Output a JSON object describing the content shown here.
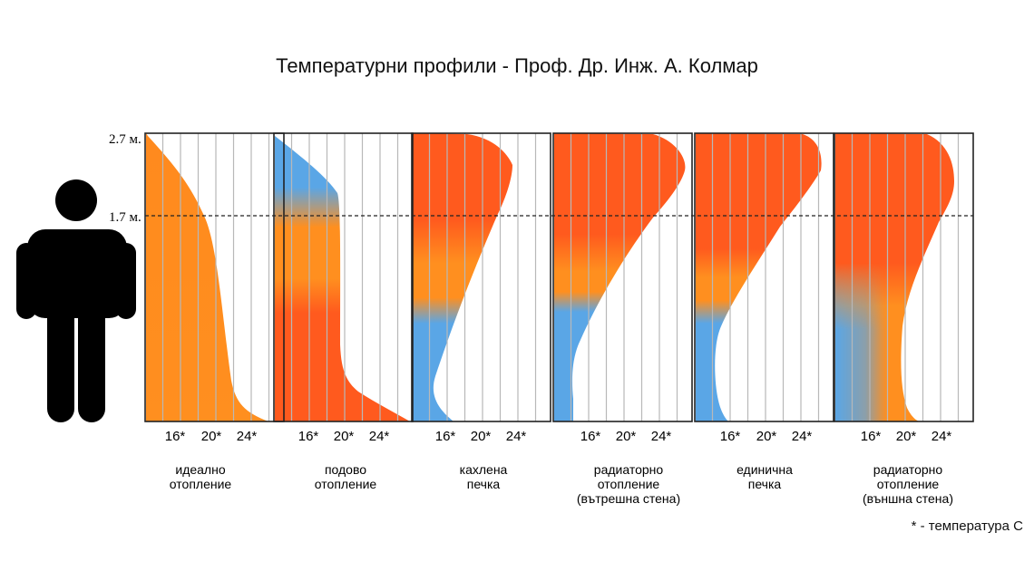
{
  "title": "Температурни профили - Проф. Др. Инж. А. Колмар",
  "height_labels": {
    "top": "2.7 м.",
    "mid": "1.7 м."
  },
  "footnote": "* - температура С",
  "colors": {
    "blue": "#5aa6e6",
    "orange": "#ff8f1f",
    "red_orange": "#ff5a1e",
    "grid": "#b8b8b8",
    "frame": "#222222",
    "person": "#000000"
  },
  "person_icon": "standing-person-silhouette-icon",
  "panels": [
    {
      "tick_labels": [
        "16*",
        "20*",
        "24*"
      ],
      "label_lines": [
        "идеално",
        "отопление"
      ]
    },
    {
      "tick_labels": [
        "16*",
        "20*",
        "24*"
      ],
      "label_lines": [
        "подово",
        "отопление"
      ]
    },
    {
      "tick_labels": [
        "16*",
        "20*",
        "24*"
      ],
      "label_lines": [
        "кахлена",
        "печка"
      ]
    },
    {
      "tick_labels": [
        "16*",
        "20*",
        "24*"
      ],
      "label_lines": [
        "радиаторно",
        "отопление",
        "(вътрешна стена)"
      ]
    },
    {
      "tick_labels": [
        "16*",
        "20*",
        "24*"
      ],
      "label_lines": [
        "единична",
        "печка"
      ]
    },
    {
      "tick_labels": [
        "16*",
        "20*",
        "24*"
      ],
      "label_lines": [
        "радиаторно",
        "отопление",
        "(външна стена)"
      ]
    }
  ]
}
